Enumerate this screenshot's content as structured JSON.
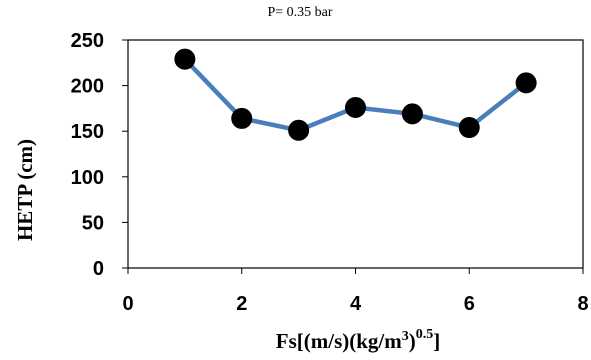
{
  "chart_data": {
    "type": "line",
    "title": "P= 0.35 bar",
    "ylabel": "HETP (cm)",
    "xlabel": {
      "parts": [
        "Fs[(m/s)(kg/m",
        "3",
        ")",
        "0.5",
        "]"
      ]
    },
    "xlim": [
      0,
      8
    ],
    "ylim": [
      0,
      250
    ],
    "x_ticks": [
      "0",
      "2",
      "4",
      "6",
      "8"
    ],
    "y_ticks": [
      "0",
      "50",
      "100",
      "150",
      "200",
      "250"
    ],
    "grid": false,
    "legend": "none",
    "series": [
      {
        "x": [
          1,
          2,
          3,
          4,
          5,
          6,
          7
        ],
        "y": [
          229,
          164,
          151,
          176,
          169,
          154,
          203
        ]
      }
    ],
    "colors": {
      "line": "#4a7ebb",
      "marker": "#000000",
      "axis": "#000000"
    }
  }
}
